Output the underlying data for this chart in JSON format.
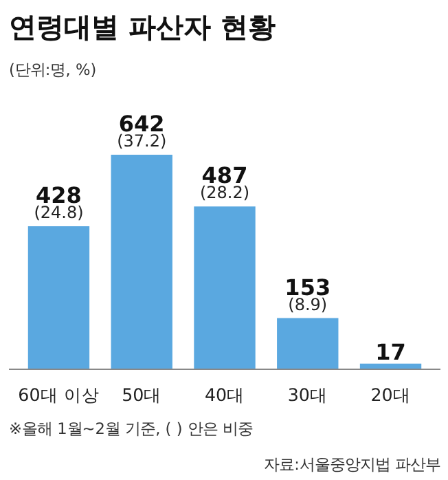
{
  "chart_data": {
    "type": "bar",
    "title": "연령대별 파산자 현황",
    "subtitle": "(단위:명, %)",
    "categories": [
      "60대 이상",
      "50대",
      "40대",
      "30대",
      "20대"
    ],
    "values": [
      428,
      642,
      487,
      153,
      17
    ],
    "color": "#5aa8e0",
    "value_labels": [
      "428\n(24.8)",
      "642\n(37.2)",
      "487\n(28.2)",
      "153\n(8.9)",
      "17"
    ],
    "annotations": [
      "※올해 1월~2월 기준, ( ) 안은 비중",
      "자료:서울중앙지법 파산부"
    ]
  }
}
